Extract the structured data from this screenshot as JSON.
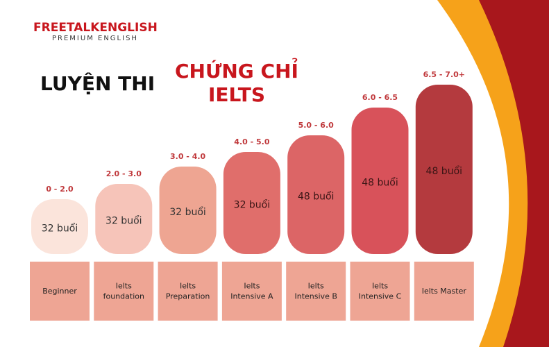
{
  "logo": {
    "brand": "FREETALKENGLISH",
    "tagline": "PREMIUM ENGLISH"
  },
  "title": {
    "line1": "LUYỆN THI",
    "line2": "CHỨNG CHỈ",
    "line3": "IELTS"
  },
  "levels": [
    {
      "range": "0 - 2.0",
      "sessions": "32 buổi",
      "name": [
        "Beginner"
      ]
    },
    {
      "range": "2.0 - 3.0",
      "sessions": "32 buổi",
      "name": [
        "Ielts",
        "foundation"
      ]
    },
    {
      "range": "3.0 - 4.0",
      "sessions": "32 buổi",
      "name": [
        "Ielts",
        "Preparation"
      ]
    },
    {
      "range": "4.0 - 5.0",
      "sessions": "32 buổi",
      "name": [
        "Ielts",
        "Intensive A"
      ]
    },
    {
      "range": "5.0 - 6.0",
      "sessions": "48 buổi",
      "name": [
        "Ielts",
        "Intensive B"
      ]
    },
    {
      "range": "6.0 - 6.5",
      "sessions": "48 buổi",
      "name": [
        "Ielts",
        "Intensive C"
      ]
    },
    {
      "range": "6.5 - 7.0+",
      "sessions": "48 buổi",
      "name": [
        "Ielts Master"
      ]
    }
  ]
}
